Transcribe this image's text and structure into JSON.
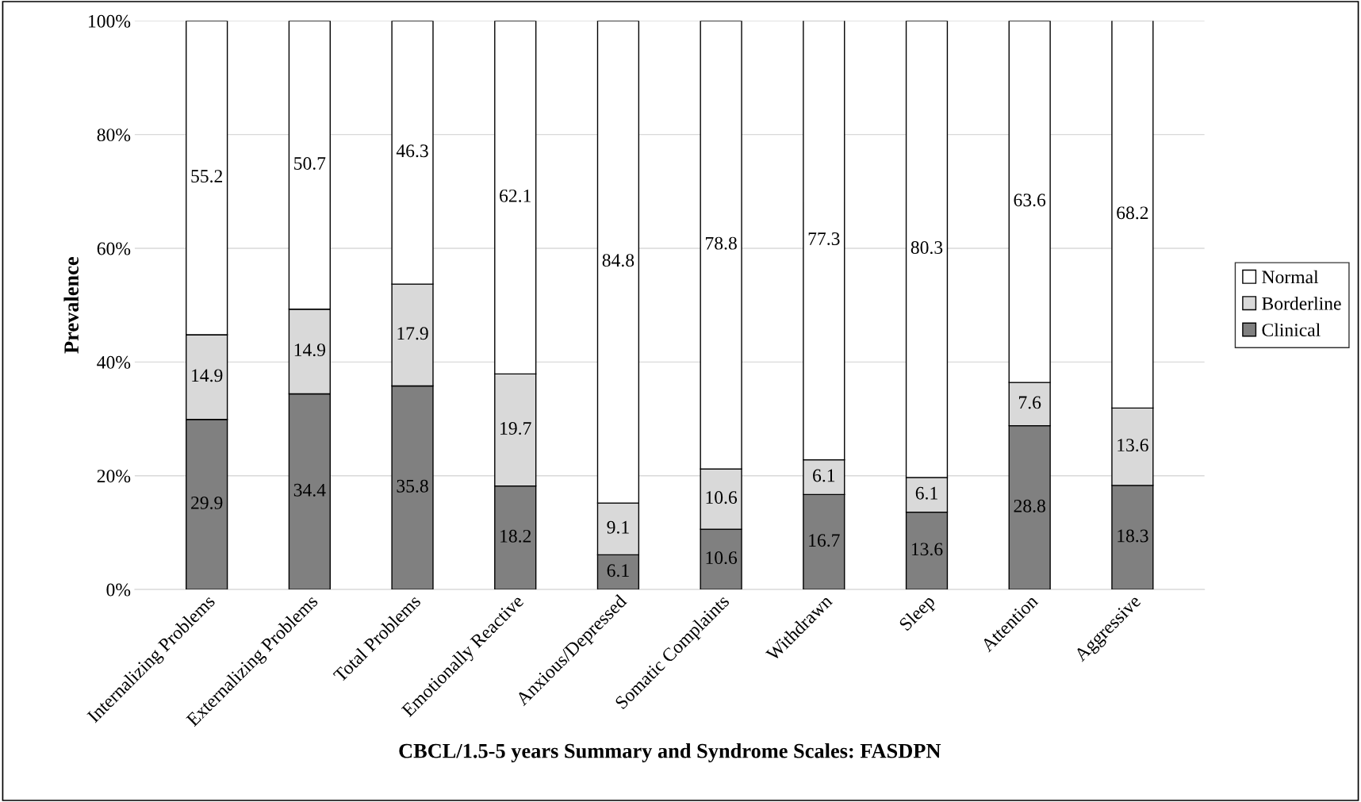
{
  "chart_data": {
    "type": "bar",
    "stacked": true,
    "xlabel": "CBCL/1.5-5 years Summary and Syndrome Scales: FASDPN",
    "ylabel": "Prevalence",
    "categories": [
      "Internalizing Problems",
      "Externalizing Problems",
      "Total Problems",
      "Emotionally Reactive",
      "Anxious/Depressed",
      "Somatic Complaints",
      "Withdrawn",
      "Sleep",
      "Attention",
      "Aggressive"
    ],
    "series": [
      {
        "name": "Clinical",
        "color": "#808080",
        "values": [
          29.9,
          34.4,
          35.8,
          18.2,
          6.1,
          10.6,
          16.7,
          13.6,
          28.8,
          18.3
        ]
      },
      {
        "name": "Borderline",
        "color": "#d9d9d9",
        "values": [
          14.9,
          14.9,
          17.9,
          19.7,
          9.1,
          10.6,
          6.1,
          6.1,
          7.6,
          13.6
        ]
      },
      {
        "name": "Normal",
        "color": "#ffffff",
        "values": [
          55.2,
          50.7,
          46.3,
          62.1,
          84.8,
          78.8,
          77.3,
          80.3,
          63.6,
          68.2
        ]
      }
    ],
    "ylim": [
      0,
      100
    ],
    "yticks": [
      {
        "value": 0,
        "label": "0%"
      },
      {
        "value": 20,
        "label": "20%"
      },
      {
        "value": 40,
        "label": "40%"
      },
      {
        "value": 60,
        "label": "60%"
      },
      {
        "value": 80,
        "label": "80%"
      },
      {
        "value": 100,
        "label": "100%"
      }
    ],
    "grid": "y",
    "legend": "right",
    "data_labels": true
  }
}
